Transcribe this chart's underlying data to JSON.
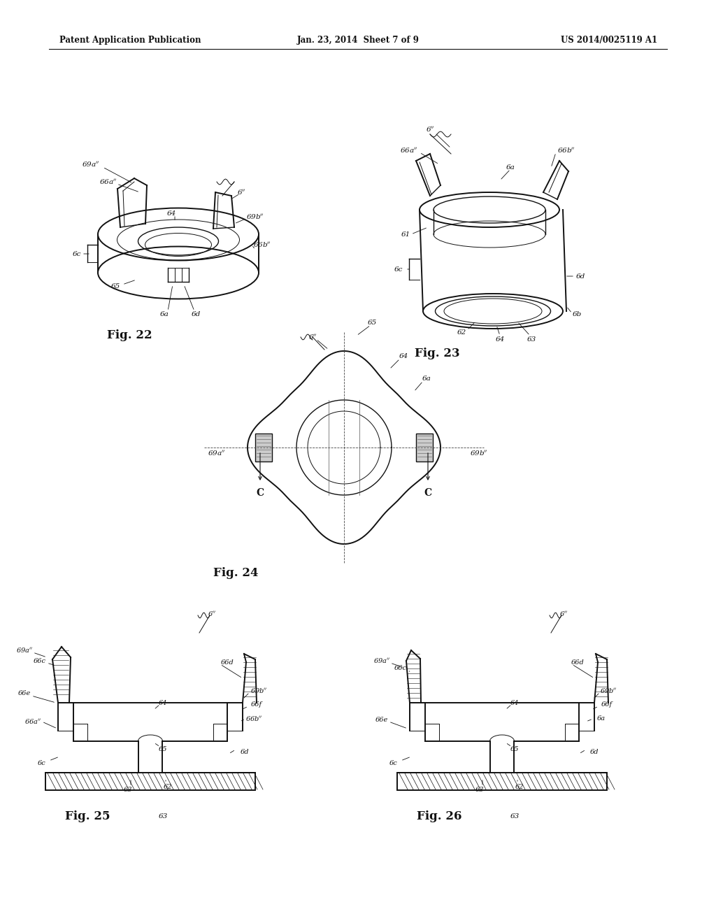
{
  "bg_color": "#ffffff",
  "page_width": 10.24,
  "page_height": 13.2,
  "header_left": "Patent Application Publication",
  "header_center": "Jan. 23, 2014  Sheet 7 of 9",
  "header_right": "US 2014/0025119 A1",
  "fig22_label": "Fig. 22",
  "fig23_label": "Fig. 23",
  "fig24_label": "Fig. 24",
  "fig25_label": "Fig. 25",
  "fig26_label": "Fig. 26"
}
